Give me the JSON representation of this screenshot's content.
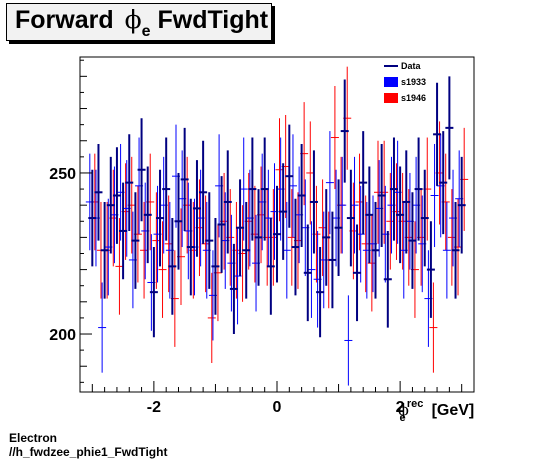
{
  "title": {
    "main": "Forward ",
    "phi": "ϕ",
    "sub": "e",
    "rest": " FwdTight"
  },
  "xlabel": {
    "phi": "ϕ",
    "sup": "rec",
    "sub": "e",
    "unit": "[GeV]"
  },
  "footer": {
    "line1": "Electron",
    "line2": "//h_fwdzee_phie1_FwdTight"
  },
  "colors": {
    "data": "#000080",
    "s1933": "#0000ff",
    "s1946": "#ff0000",
    "frame": "#000000"
  },
  "chart_data": {
    "type": "scatter",
    "xlim": [
      -3.2,
      3.2
    ],
    "ylim": [
      182,
      286
    ],
    "xticks": [
      -2,
      0,
      2
    ],
    "yticks": [
      200,
      250
    ],
    "xtick_labels": [
      "-2",
      "0",
      "2"
    ],
    "ytick_labels": [
      "200",
      "250"
    ],
    "legend": [
      {
        "name": "Data",
        "style": "line"
      },
      {
        "name": "s1933",
        "style": "box"
      },
      {
        "name": "s1946",
        "style": "box"
      }
    ],
    "series": [
      {
        "name": "Data",
        "x": [
          -3.0,
          -2.9,
          -2.8,
          -2.7,
          -2.6,
          -2.5,
          -2.4,
          -2.3,
          -2.2,
          -2.1,
          -2.0,
          -1.9,
          -1.8,
          -1.7,
          -1.6,
          -1.5,
          -1.4,
          -1.3,
          -1.2,
          -1.1,
          -1.0,
          -0.9,
          -0.8,
          -0.7,
          -0.6,
          -0.5,
          -0.4,
          -0.3,
          -0.2,
          -0.1,
          0.0,
          0.1,
          0.2,
          0.3,
          0.4,
          0.5,
          0.6,
          0.7,
          0.8,
          0.9,
          1.0,
          1.1,
          1.2,
          1.3,
          1.4,
          1.5,
          1.6,
          1.7,
          1.8,
          1.9,
          2.0,
          2.1,
          2.2,
          2.3,
          2.4,
          2.5,
          2.6,
          2.7,
          2.8,
          2.9,
          3.0
        ],
        "y": [
          236,
          244,
          226,
          240,
          243,
          232,
          247,
          229,
          251,
          237,
          213,
          236,
          245,
          221,
          235,
          248,
          227,
          239,
          244,
          229,
          221,
          234,
          241,
          214,
          233,
          226,
          245,
          230,
          245,
          221,
          231,
          238,
          249,
          227,
          243,
          219,
          241,
          213,
          230,
          223,
          233,
          263,
          236,
          219,
          247,
          237,
          226,
          243,
          217,
          245,
          237,
          241,
          229,
          245,
          236,
          220,
          262,
          247,
          264,
          226,
          240
        ],
        "err": [
          15,
          15,
          15,
          15,
          15,
          15,
          15,
          15,
          16,
          15,
          14,
          15,
          16,
          15,
          15,
          16,
          15,
          15,
          16,
          15,
          15,
          15,
          16,
          14,
          15,
          15,
          16,
          15,
          16,
          15,
          15,
          15,
          16,
          15,
          16,
          15,
          16,
          14,
          15,
          15,
          15,
          16,
          15,
          15,
          16,
          15,
          15,
          16,
          15,
          16,
          15,
          16,
          15,
          16,
          15,
          15,
          16,
          16,
          16,
          15,
          15
        ]
      },
      {
        "name": "s1933",
        "x": [
          -3.0,
          -2.9,
          -2.8,
          -2.7,
          -2.6,
          -2.5,
          -2.4,
          -2.3,
          -2.2,
          -2.1,
          -2.0,
          -1.9,
          -1.8,
          -1.7,
          -1.6,
          -1.5,
          -1.4,
          -1.3,
          -1.2,
          -1.1,
          -1.0,
          -0.9,
          -0.8,
          -0.7,
          -0.6,
          -0.5,
          -0.4,
          -0.3,
          -0.2,
          -0.1,
          0.0,
          0.1,
          0.2,
          0.3,
          0.4,
          0.5,
          0.6,
          0.7,
          0.8,
          0.9,
          1.0,
          1.1,
          1.2,
          1.3,
          1.4,
          1.5,
          1.6,
          1.7,
          1.8,
          1.9,
          2.0,
          2.1,
          2.2,
          2.3,
          2.4,
          2.5,
          2.6,
          2.7,
          2.8,
          2.9,
          3.0
        ],
        "y": [
          241,
          236,
          202,
          227,
          237,
          244,
          239,
          223,
          246,
          232,
          216,
          231,
          240,
          226,
          249,
          242,
          232,
          227,
          236,
          226,
          212,
          246,
          229,
          222,
          218,
          245,
          236,
          222,
          241,
          236,
          238,
          245,
          226,
          246,
          237,
          233,
          220,
          217,
          223,
          247,
          236,
          240,
          198,
          240,
          231,
          226,
          228,
          239,
          231,
          240,
          244,
          226,
          235,
          240,
          228,
          211,
          243,
          246,
          226,
          236,
          242
        ],
        "err": [
          15,
          15,
          14,
          15,
          15,
          15,
          15,
          15,
          15,
          15,
          15,
          15,
          15,
          15,
          16,
          15,
          15,
          15,
          15,
          15,
          14,
          16,
          15,
          15,
          15,
          16,
          15,
          15,
          15,
          15,
          15,
          16,
          15,
          16,
          15,
          15,
          15,
          15,
          15,
          16,
          15,
          15,
          14,
          15,
          15,
          15,
          15,
          15,
          15,
          15,
          16,
          15,
          15,
          15,
          15,
          15,
          16,
          16,
          15,
          15,
          15
        ]
      },
      {
        "name": "s1946",
        "x": [
          -3.0,
          -2.9,
          -2.8,
          -2.7,
          -2.6,
          -2.5,
          -2.4,
          -2.3,
          -2.2,
          -2.1,
          -2.0,
          -1.9,
          -1.8,
          -1.7,
          -1.6,
          -1.5,
          -1.4,
          -1.3,
          -1.2,
          -1.1,
          -1.0,
          -0.9,
          -0.8,
          -0.7,
          -0.6,
          -0.5,
          -0.4,
          -0.3,
          -0.2,
          -0.1,
          0.0,
          0.1,
          0.2,
          0.3,
          0.4,
          0.5,
          0.6,
          0.7,
          0.8,
          0.9,
          1.0,
          1.1,
          1.2,
          1.3,
          1.4,
          1.5,
          1.6,
          1.7,
          1.8,
          1.9,
          2.0,
          2.1,
          2.2,
          2.3,
          2.4,
          2.5,
          2.6,
          2.7,
          2.8,
          2.9,
          3.0
        ],
        "y": [
          241,
          226,
          226,
          236,
          221,
          238,
          240,
          231,
          226,
          241,
          229,
          220,
          228,
          211,
          224,
          240,
          226,
          233,
          228,
          205,
          219,
          235,
          230,
          226,
          225,
          235,
          231,
          237,
          230,
          230,
          251,
          252,
          230,
          229,
          256,
          250,
          231,
          233,
          223,
          261,
          240,
          267,
          232,
          241,
          228,
          222,
          244,
          244,
          235,
          238,
          235,
          230,
          220,
          230,
          245,
          202,
          250,
          241,
          230,
          227,
          248
        ],
        "err": [
          15,
          15,
          15,
          15,
          15,
          15,
          15,
          15,
          15,
          15,
          15,
          15,
          15,
          15,
          15,
          15,
          15,
          15,
          15,
          14,
          15,
          15,
          15,
          15,
          15,
          15,
          15,
          15,
          15,
          15,
          16,
          16,
          15,
          15,
          16,
          16,
          15,
          15,
          15,
          16,
          15,
          16,
          15,
          15,
          15,
          15,
          16,
          16,
          15,
          15,
          15,
          15,
          15,
          15,
          16,
          14,
          16,
          15,
          15,
          15,
          16
        ]
      }
    ]
  }
}
